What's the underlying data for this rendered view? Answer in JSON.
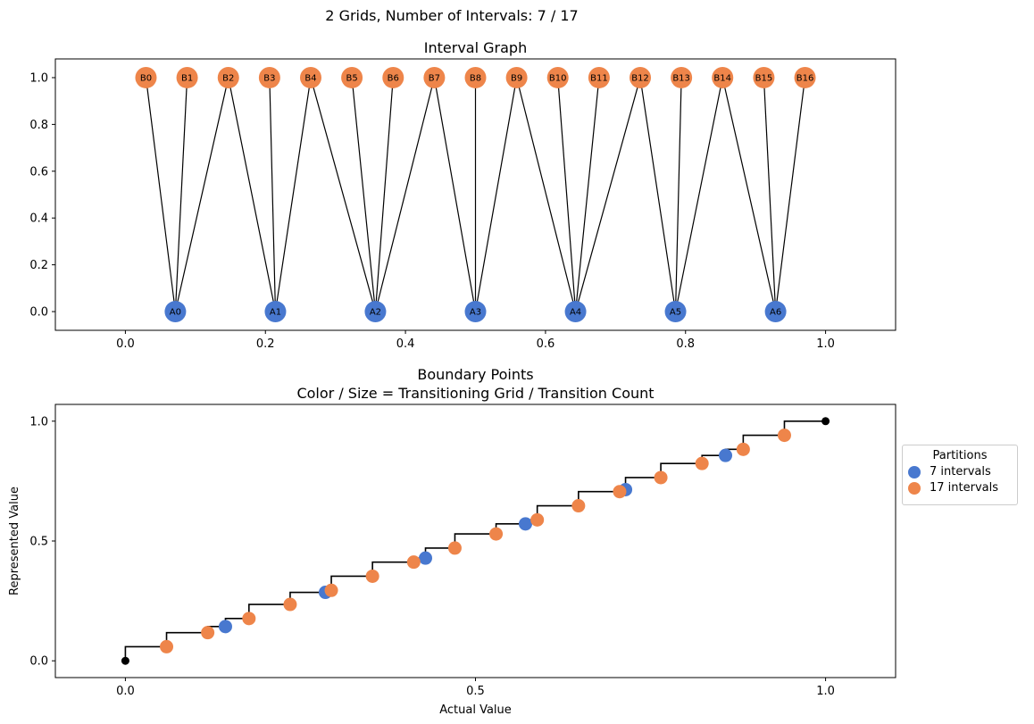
{
  "figure_title": "2 Grids, Number of Intervals: 7 / 17",
  "colors": {
    "grid_a": "#4878cf",
    "grid_b": "#ee854a",
    "edge": "#000000",
    "endpoint": "#000000"
  },
  "chart_data": [
    {
      "type": "network",
      "title": "Interval Graph",
      "xlim": [
        -0.1,
        1.1
      ],
      "ylim": [
        -0.08,
        1.08
      ],
      "x_ticks": [
        "0.0",
        "0.2",
        "0.4",
        "0.6",
        "0.8",
        "1.0"
      ],
      "y_ticks": [
        "0.0",
        "0.2",
        "0.4",
        "0.6",
        "0.8",
        "1.0"
      ],
      "nodes_a": {
        "labels": [
          "A0",
          "A1",
          "A2",
          "A3",
          "A4",
          "A5",
          "A6"
        ],
        "x": [
          0.0714,
          0.2143,
          0.3571,
          0.5,
          0.6429,
          0.7857,
          0.9286
        ],
        "y": 0
      },
      "nodes_b": {
        "labels": [
          "B0",
          "B1",
          "B2",
          "B3",
          "B4",
          "B5",
          "B6",
          "B7",
          "B8",
          "B9",
          "B10",
          "B11",
          "B12",
          "B13",
          "B14",
          "B15",
          "B16"
        ],
        "x": [
          0.0294,
          0.0882,
          0.1471,
          0.2059,
          0.2647,
          0.3235,
          0.3824,
          0.4412,
          0.5,
          0.5588,
          0.6176,
          0.6765,
          0.7353,
          0.7941,
          0.8529,
          0.9118,
          0.9706
        ],
        "y": 1
      },
      "edges": [
        [
          0,
          0
        ],
        [
          1,
          0
        ],
        [
          2,
          0
        ],
        [
          2,
          1
        ],
        [
          3,
          1
        ],
        [
          4,
          1
        ],
        [
          4,
          2
        ],
        [
          5,
          2
        ],
        [
          6,
          2
        ],
        [
          7,
          2
        ],
        [
          7,
          3
        ],
        [
          8,
          3
        ],
        [
          9,
          3
        ],
        [
          9,
          4
        ],
        [
          10,
          4
        ],
        [
          11,
          4
        ],
        [
          12,
          4
        ],
        [
          12,
          5
        ],
        [
          13,
          5
        ],
        [
          14,
          5
        ],
        [
          14,
          6
        ],
        [
          15,
          6
        ],
        [
          16,
          6
        ]
      ]
    },
    {
      "type": "step+scatter",
      "title_lines": [
        "Boundary Points",
        "Color / Size = Transitioning Grid / Transition Count"
      ],
      "xlabel": "Actual Value",
      "ylabel": "Represented Value",
      "xlim": [
        -0.1,
        1.1
      ],
      "ylim": [
        -0.07,
        1.07
      ],
      "x_ticks": [
        "0.0",
        "0.5",
        "1.0"
      ],
      "y_ticks": [
        "0.0",
        "0.5",
        "1.0"
      ],
      "step_x": [
        0,
        0.0588,
        0.1176,
        0.1429,
        0.1765,
        0.2353,
        0.2857,
        0.2941,
        0.3529,
        0.4118,
        0.4286,
        0.4706,
        0.5294,
        0.5714,
        0.5882,
        0.6471,
        0.7059,
        0.7143,
        0.7647,
        0.8235,
        0.8571,
        0.8824,
        0.9412,
        1.0
      ],
      "step_y": [
        0,
        0.0588,
        0.1176,
        0.1429,
        0.1765,
        0.2353,
        0.2857,
        0.2941,
        0.3529,
        0.4118,
        0.4286,
        0.4706,
        0.5294,
        0.5714,
        0.5882,
        0.6471,
        0.7059,
        0.7143,
        0.7647,
        0.8235,
        0.8571,
        0.8824,
        0.9412,
        1.0
      ],
      "endpoints": [
        [
          0,
          0
        ],
        [
          1.0,
          1.0
        ]
      ],
      "series": [
        {
          "name": "7 intervals",
          "x": [
            0.1429,
            0.2857,
            0.4286,
            0.5714,
            0.7143,
            0.8571
          ],
          "y": [
            0.1429,
            0.2857,
            0.4286,
            0.5714,
            0.7143,
            0.8571
          ]
        },
        {
          "name": "17 intervals",
          "x": [
            0.0588,
            0.1176,
            0.1765,
            0.2353,
            0.2941,
            0.3529,
            0.4118,
            0.4706,
            0.5294,
            0.5882,
            0.6471,
            0.7059,
            0.7647,
            0.8235,
            0.8824,
            0.9412
          ],
          "y": [
            0.0588,
            0.1176,
            0.1765,
            0.2353,
            0.2941,
            0.3529,
            0.4118,
            0.4706,
            0.5294,
            0.5882,
            0.6471,
            0.7059,
            0.7647,
            0.8235,
            0.8824,
            0.9412
          ]
        }
      ],
      "legend": {
        "title": "Partitions",
        "placement": "outside right",
        "items": [
          "7 intervals",
          "17 intervals"
        ]
      }
    }
  ]
}
